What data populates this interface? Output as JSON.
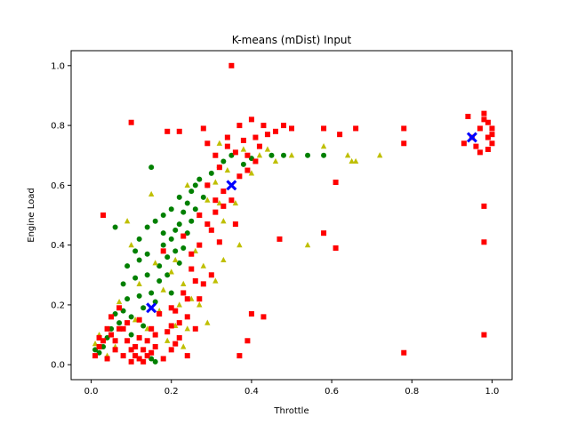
{
  "chart_data": {
    "type": "scatter",
    "title": "K-means (mDist) Input",
    "xlabel": "Throttle",
    "ylabel": "Engine Load",
    "xlim": [
      -0.05,
      1.05
    ],
    "ylim": [
      -0.05,
      1.05
    ],
    "xticks": [
      "0.0",
      "0.2",
      "0.4",
      "0.6",
      "0.8",
      "1.0"
    ],
    "yticks": [
      "0.0",
      "0.2",
      "0.4",
      "0.6",
      "0.8",
      "1.0"
    ],
    "grid": false,
    "legend": "none",
    "series": [
      {
        "marker": "circle",
        "color": "#008000",
        "points": [
          [
            0.01,
            0.05
          ],
          [
            0.02,
            0.04
          ],
          [
            0.03,
            0.06
          ],
          [
            0.04,
            0.09
          ],
          [
            0.05,
            0.12
          ],
          [
            0.06,
            0.17
          ],
          [
            0.06,
            0.46
          ],
          [
            0.07,
            0.14
          ],
          [
            0.08,
            0.18
          ],
          [
            0.08,
            0.27
          ],
          [
            0.09,
            0.22
          ],
          [
            0.09,
            0.33
          ],
          [
            0.1,
            0.1
          ],
          [
            0.1,
            0.16
          ],
          [
            0.11,
            0.29
          ],
          [
            0.11,
            0.38
          ],
          [
            0.12,
            0.23
          ],
          [
            0.12,
            0.35
          ],
          [
            0.13,
            0.13
          ],
          [
            0.13,
            0.19
          ],
          [
            0.14,
            0.3
          ],
          [
            0.14,
            0.37
          ],
          [
            0.15,
            0.02
          ],
          [
            0.15,
            0.24
          ],
          [
            0.15,
            0.66
          ],
          [
            0.16,
            0.01
          ],
          [
            0.16,
            0.21
          ],
          [
            0.17,
            0.28
          ],
          [
            0.17,
            0.33
          ],
          [
            0.18,
            0.4
          ],
          [
            0.18,
            0.44
          ],
          [
            0.19,
            0.3
          ],
          [
            0.19,
            0.36
          ],
          [
            0.2,
            0.24
          ],
          [
            0.2,
            0.42
          ],
          [
            0.21,
            0.38
          ],
          [
            0.21,
            0.45
          ],
          [
            0.22,
            0.34
          ],
          [
            0.22,
            0.47
          ],
          [
            0.23,
            0.39
          ],
          [
            0.23,
            0.51
          ],
          [
            0.24,
            0.44
          ],
          [
            0.24,
            0.54
          ],
          [
            0.25,
            0.48
          ],
          [
            0.25,
            0.58
          ],
          [
            0.26,
            0.52
          ],
          [
            0.27,
            0.62
          ],
          [
            0.28,
            0.56
          ],
          [
            0.29,
            0.6
          ],
          [
            0.3,
            0.64
          ],
          [
            0.32,
            0.66
          ],
          [
            0.33,
            0.68
          ],
          [
            0.35,
            0.7
          ],
          [
            0.38,
            0.67
          ],
          [
            0.4,
            0.69
          ],
          [
            0.45,
            0.7
          ],
          [
            0.48,
            0.7
          ],
          [
            0.54,
            0.7
          ],
          [
            0.58,
            0.7
          ],
          [
            0.2,
            0.52
          ],
          [
            0.18,
            0.5
          ],
          [
            0.16,
            0.48
          ],
          [
            0.14,
            0.46
          ],
          [
            0.12,
            0.42
          ],
          [
            0.22,
            0.56
          ],
          [
            0.26,
            0.6
          ]
        ]
      },
      {
        "marker": "triangle",
        "color": "#bfbf00",
        "points": [
          [
            0.01,
            0.07
          ],
          [
            0.02,
            0.1
          ],
          [
            0.04,
            0.03
          ],
          [
            0.06,
            0.06
          ],
          [
            0.07,
            0.21
          ],
          [
            0.09,
            0.48
          ],
          [
            0.1,
            0.4
          ],
          [
            0.11,
            0.15
          ],
          [
            0.12,
            0.27
          ],
          [
            0.14,
            0.12
          ],
          [
            0.15,
            0.57
          ],
          [
            0.16,
            0.34
          ],
          [
            0.17,
            0.18
          ],
          [
            0.18,
            0.25
          ],
          [
            0.19,
            0.08
          ],
          [
            0.2,
            0.31
          ],
          [
            0.21,
            0.35
          ],
          [
            0.22,
            0.2
          ],
          [
            0.23,
            0.27
          ],
          [
            0.24,
            0.12
          ],
          [
            0.24,
            0.6
          ],
          [
            0.25,
            0.22
          ],
          [
            0.26,
            0.38
          ],
          [
            0.27,
            0.5
          ],
          [
            0.28,
            0.33
          ],
          [
            0.29,
            0.55
          ],
          [
            0.3,
            0.45
          ],
          [
            0.31,
            0.61
          ],
          [
            0.32,
            0.54
          ],
          [
            0.32,
            0.74
          ],
          [
            0.33,
            0.48
          ],
          [
            0.34,
            0.65
          ],
          [
            0.36,
            0.54
          ],
          [
            0.38,
            0.72
          ],
          [
            0.4,
            0.64
          ],
          [
            0.42,
            0.7
          ],
          [
            0.44,
            0.72
          ],
          [
            0.46,
            0.68
          ],
          [
            0.5,
            0.7
          ],
          [
            0.54,
            0.4
          ],
          [
            0.58,
            0.73
          ],
          [
            0.64,
            0.7
          ],
          [
            0.65,
            0.68
          ],
          [
            0.66,
            0.68
          ],
          [
            0.72,
            0.7
          ],
          [
            0.23,
            0.06
          ],
          [
            0.27,
            0.2
          ],
          [
            0.29,
            0.14
          ],
          [
            0.21,
            0.13
          ],
          [
            0.33,
            0.35
          ],
          [
            0.37,
            0.4
          ],
          [
            0.31,
            0.28
          ]
        ]
      },
      {
        "marker": "square",
        "color": "#ff0000",
        "points": [
          [
            0.01,
            0.03
          ],
          [
            0.02,
            0.06
          ],
          [
            0.03,
            0.08
          ],
          [
            0.03,
            0.5
          ],
          [
            0.04,
            0.02
          ],
          [
            0.05,
            0.1
          ],
          [
            0.05,
            0.16
          ],
          [
            0.06,
            0.05
          ],
          [
            0.07,
            0.12
          ],
          [
            0.07,
            0.19
          ],
          [
            0.08,
            0.03
          ],
          [
            0.09,
            0.08
          ],
          [
            0.1,
            0.01
          ],
          [
            0.1,
            0.81
          ],
          [
            0.11,
            0.06
          ],
          [
            0.12,
            0.02
          ],
          [
            0.13,
            0.05
          ],
          [
            0.14,
            0.08
          ],
          [
            0.15,
            0.04
          ],
          [
            0.16,
            0.06
          ],
          [
            0.17,
            0.17
          ],
          [
            0.18,
            0.02
          ],
          [
            0.18,
            0.38
          ],
          [
            0.19,
            0.78
          ],
          [
            0.2,
            0.05
          ],
          [
            0.2,
            0.13
          ],
          [
            0.21,
            0.18
          ],
          [
            0.22,
            0.09
          ],
          [
            0.22,
            0.78
          ],
          [
            0.23,
            0.43
          ],
          [
            0.24,
            0.03
          ],
          [
            0.24,
            0.22
          ],
          [
            0.25,
            0.37
          ],
          [
            0.26,
            0.28
          ],
          [
            0.27,
            0.5
          ],
          [
            0.28,
            0.79
          ],
          [
            0.29,
            0.6
          ],
          [
            0.3,
            0.45
          ],
          [
            0.31,
            0.55
          ],
          [
            0.32,
            0.66
          ],
          [
            0.33,
            0.58
          ],
          [
            0.34,
            0.76
          ],
          [
            0.35,
            1.0
          ],
          [
            0.36,
            0.71
          ],
          [
            0.37,
            0.8
          ],
          [
            0.38,
            0.75
          ],
          [
            0.39,
            0.7
          ],
          [
            0.4,
            0.82
          ],
          [
            0.41,
            0.76
          ],
          [
            0.42,
            0.73
          ],
          [
            0.43,
            0.8
          ],
          [
            0.44,
            0.77
          ],
          [
            0.46,
            0.78
          ],
          [
            0.48,
            0.8
          ],
          [
            0.5,
            0.79
          ],
          [
            0.47,
            0.42
          ],
          [
            0.4,
            0.17
          ],
          [
            0.43,
            0.16
          ],
          [
            0.37,
            0.03
          ],
          [
            0.39,
            0.08
          ],
          [
            0.3,
            0.3
          ],
          [
            0.28,
            0.27
          ],
          [
            0.32,
            0.41
          ],
          [
            0.36,
            0.47
          ],
          [
            0.58,
            0.79
          ],
          [
            0.58,
            0.44
          ],
          [
            0.61,
            0.61
          ],
          [
            0.61,
            0.39
          ],
          [
            0.62,
            0.77
          ],
          [
            0.66,
            0.79
          ],
          [
            0.78,
            0.04
          ],
          [
            0.78,
            0.74
          ],
          [
            0.78,
            0.79
          ],
          [
            0.93,
            0.74
          ],
          [
            0.94,
            0.83
          ],
          [
            0.95,
            0.76
          ],
          [
            0.96,
            0.73
          ],
          [
            0.97,
            0.79
          ],
          [
            0.97,
            0.71
          ],
          [
            0.98,
            0.84
          ],
          [
            0.98,
            0.53
          ],
          [
            0.98,
            0.41
          ],
          [
            0.98,
            0.1
          ],
          [
            0.99,
            0.76
          ],
          [
            0.99,
            0.81
          ],
          [
            1.0,
            0.77
          ],
          [
            1.0,
            0.79
          ],
          [
            1.0,
            0.74
          ],
          [
            0.99,
            0.72
          ],
          [
            0.98,
            0.82
          ],
          [
            0.15,
            0.12
          ],
          [
            0.12,
            0.15
          ],
          [
            0.08,
            0.12
          ],
          [
            0.11,
            0.03
          ],
          [
            0.13,
            0.01
          ],
          [
            0.16,
            0.1
          ],
          [
            0.19,
            0.11
          ],
          [
            0.21,
            0.07
          ],
          [
            0.23,
            0.24
          ],
          [
            0.25,
            0.32
          ],
          [
            0.27,
            0.4
          ],
          [
            0.29,
            0.47
          ],
          [
            0.31,
            0.51
          ],
          [
            0.33,
            0.53
          ],
          [
            0.35,
            0.55
          ],
          [
            0.37,
            0.63
          ],
          [
            0.39,
            0.65
          ],
          [
            0.41,
            0.68
          ],
          [
            0.29,
            0.74
          ],
          [
            0.31,
            0.7
          ],
          [
            0.34,
            0.73
          ],
          [
            0.27,
            0.22
          ],
          [
            0.26,
            0.12
          ],
          [
            0.24,
            0.16
          ],
          [
            0.22,
            0.14
          ],
          [
            0.2,
            0.19
          ],
          [
            0.14,
            0.03
          ],
          [
            0.12,
            0.09
          ],
          [
            0.1,
            0.05
          ],
          [
            0.09,
            0.14
          ],
          [
            0.06,
            0.08
          ],
          [
            0.04,
            0.12
          ],
          [
            0.02,
            0.09
          ]
        ]
      },
      {
        "marker": "x-filled",
        "color": "#0000ff",
        "points": [
          [
            0.15,
            0.19
          ],
          [
            0.35,
            0.6
          ],
          [
            0.95,
            0.76
          ]
        ]
      }
    ]
  }
}
